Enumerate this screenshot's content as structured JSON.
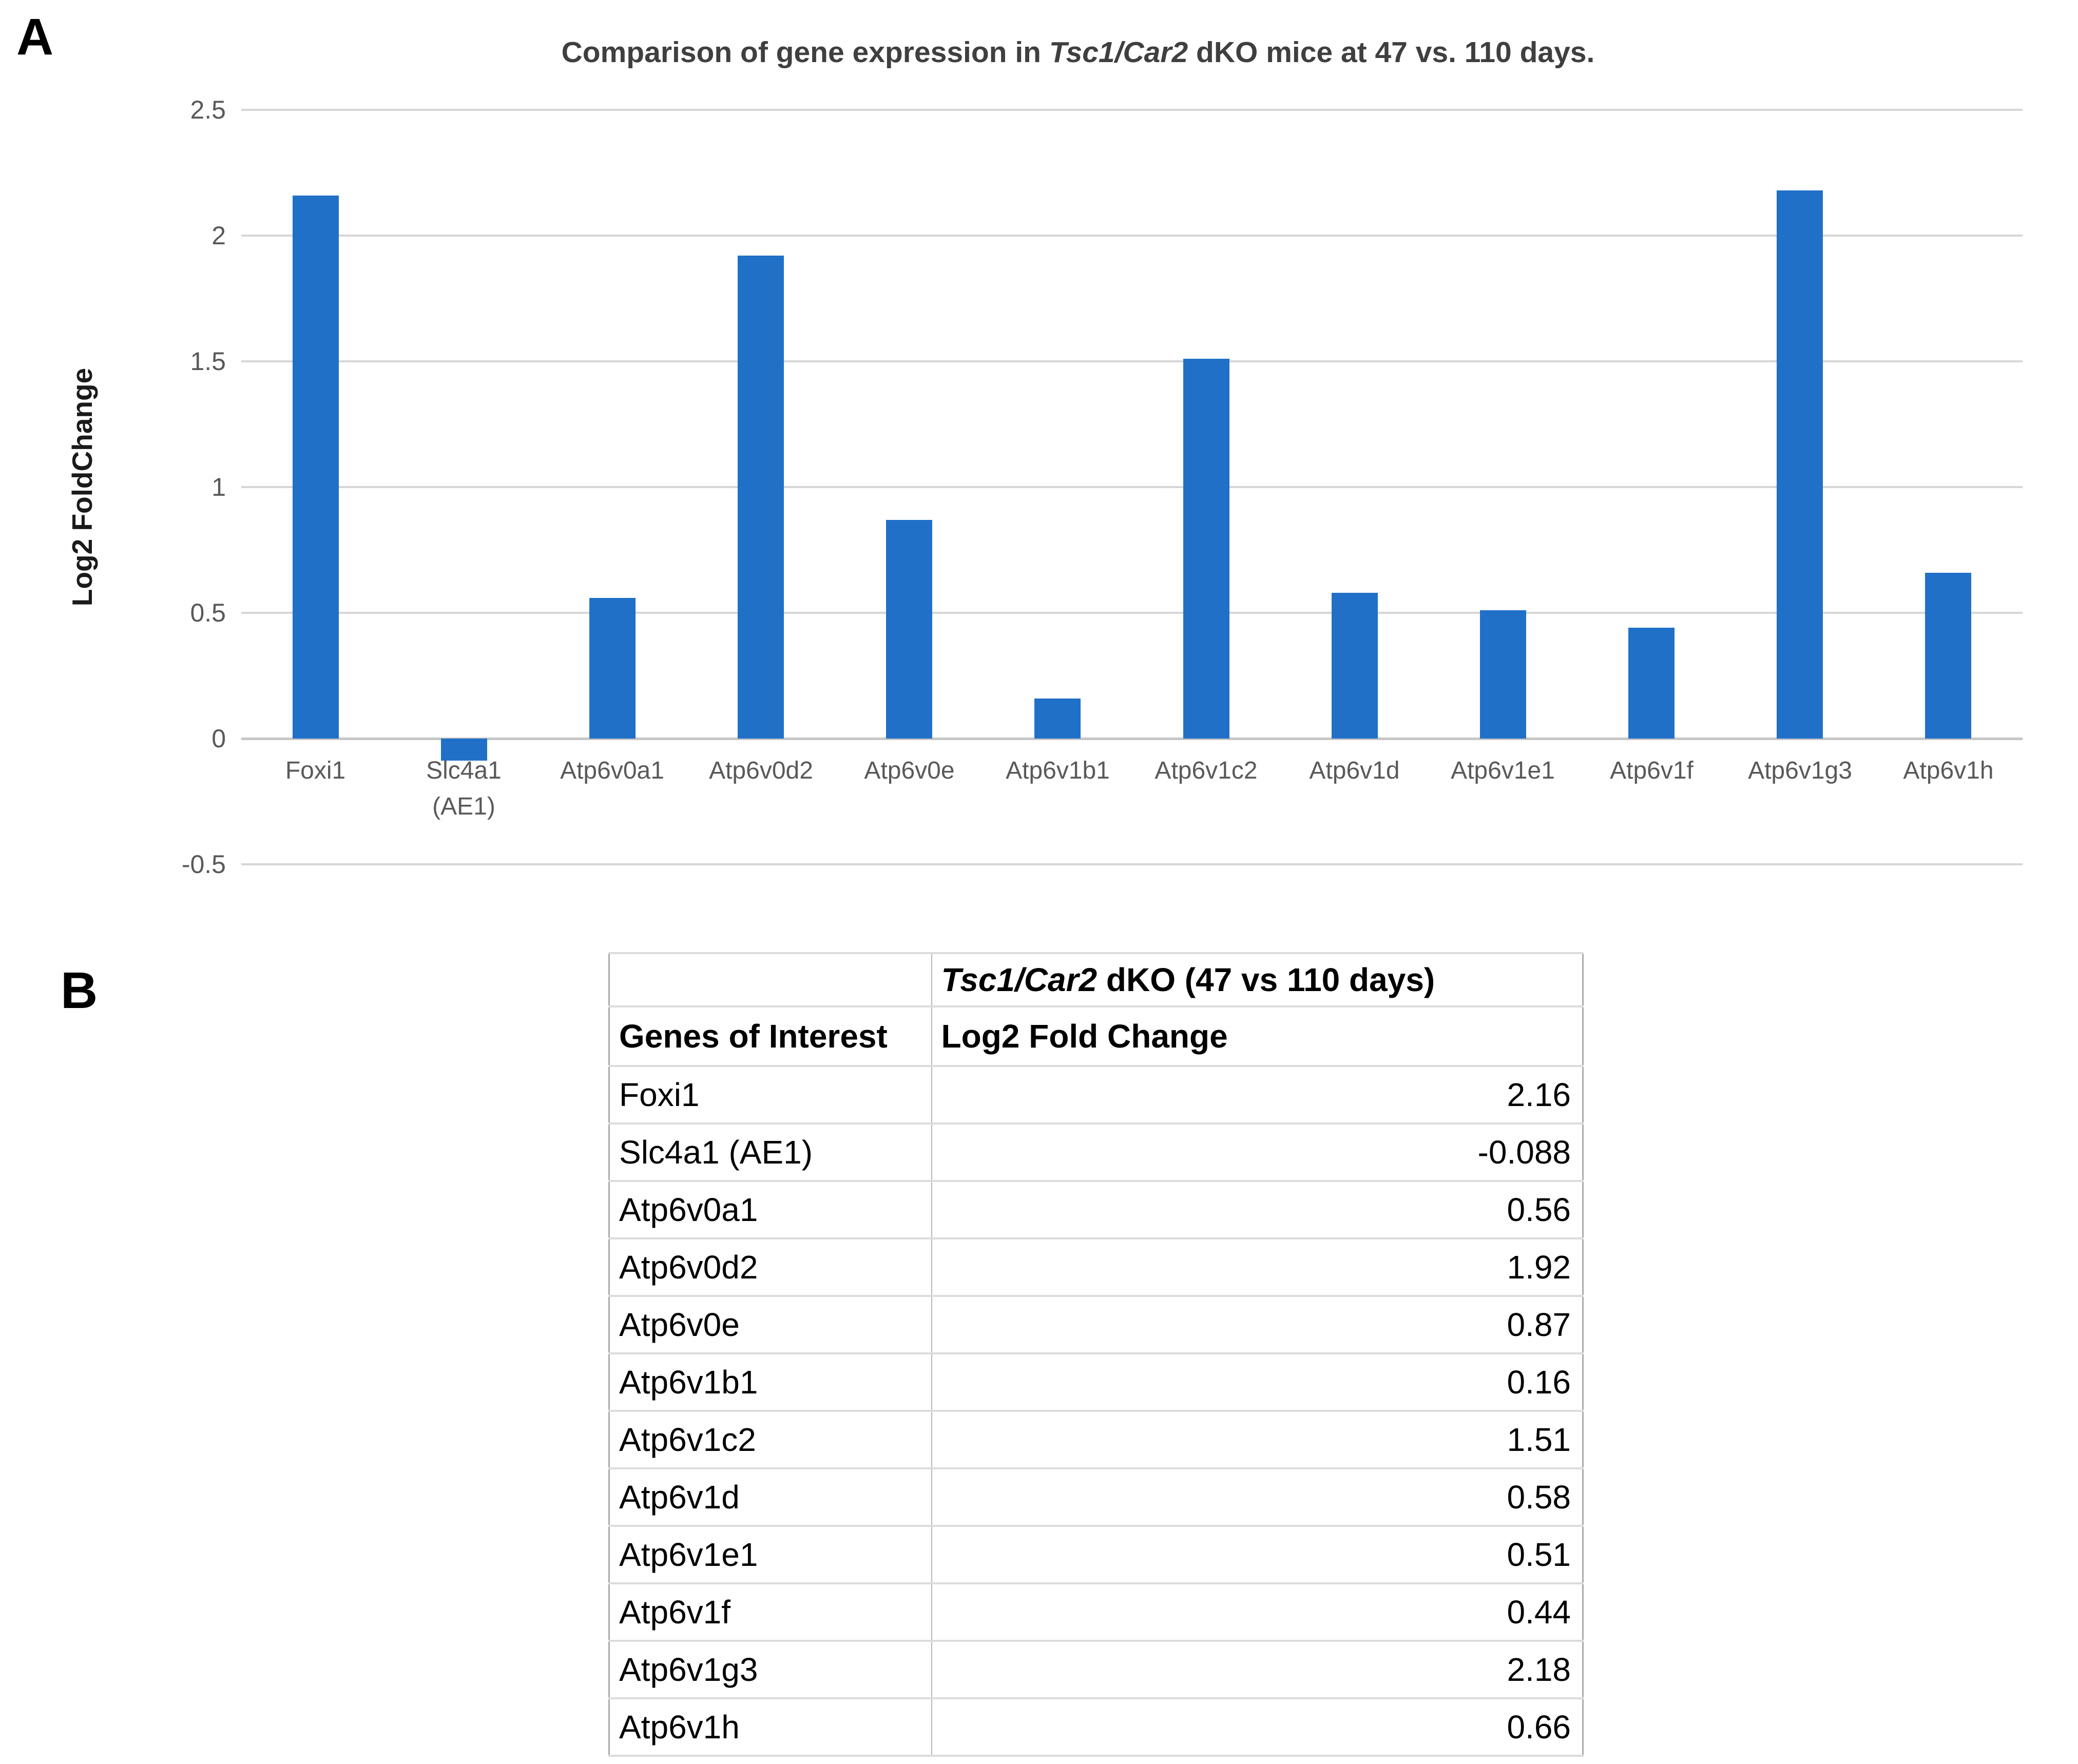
{
  "panels": {
    "a_label": "A",
    "b_label": "B"
  },
  "chart_data": {
    "type": "bar",
    "title": "Comparison of gene expression in Tsc1/Car2 dKO mice at 47 vs. 110 days.",
    "title_parts": {
      "prefix": "Comparison of gene expression in ",
      "italic": "Tsc1/Car2",
      "suffix": " dKO mice at 47 vs. 110 days."
    },
    "ylabel": "Log2 FoldChange",
    "xlabel": "",
    "categories": [
      "Foxi1",
      "Slc4a1 (AE1)",
      "Atp6v0a1",
      "Atp6v0d2",
      "Atp6v0e",
      "Atp6v1b1",
      "Atp6v1c2",
      "Atp6v1d",
      "Atp6v1e1",
      "Atp6v1f",
      "Atp6v1g3",
      "Atp6v1h"
    ],
    "category_display": [
      "Foxi1",
      "Slc4a1\n(AE1)",
      "Atp6v0a1",
      "Atp6v0d2",
      "Atp6v0e",
      "Atp6v1b1",
      "Atp6v1c2",
      "Atp6v1d",
      "Atp6v1e1",
      "Atp6v1f",
      "Atp6v1g3",
      "Atp6v1h"
    ],
    "values": [
      2.16,
      -0.088,
      0.56,
      1.92,
      0.87,
      0.16,
      1.51,
      0.58,
      0.51,
      0.44,
      2.18,
      0.66
    ],
    "ylim": [
      -0.5,
      2.5
    ],
    "yticks": [
      2.5,
      2,
      1.5,
      1,
      0.5,
      0,
      -0.5
    ],
    "ytick_labels": [
      "2.5",
      "2",
      "1.5",
      "1",
      "0.5",
      "0",
      "-0.5"
    ],
    "grid": true,
    "legend": false,
    "bar_color": "#2070C8",
    "gridline_color": "#D6D6D6",
    "axis_line_color": "#C6C6C6",
    "tick_label_color": "#595959",
    "title_color": "#3F3F3F"
  },
  "table": {
    "header_title": "Tsc1/Car2 dKO (47 vs 110 days)",
    "header_title_parts": {
      "italic": "Tsc1/Car2",
      "rest": " dKO (47 vs 110 days)"
    },
    "columns": [
      "Genes of Interest",
      "Log2 Fold Change"
    ],
    "rows": [
      {
        "gene": "Foxi1",
        "value": "2.16"
      },
      {
        "gene": "Slc4a1 (AE1)",
        "value": "-0.088"
      },
      {
        "gene": "Atp6v0a1",
        "value": "0.56"
      },
      {
        "gene": "Atp6v0d2",
        "value": "1.92"
      },
      {
        "gene": "Atp6v0e",
        "value": "0.87"
      },
      {
        "gene": "Atp6v1b1",
        "value": "0.16"
      },
      {
        "gene": "Atp6v1c2",
        "value": "1.51"
      },
      {
        "gene": "Atp6v1d",
        "value": "0.58"
      },
      {
        "gene": "Atp6v1e1",
        "value": "0.51"
      },
      {
        "gene": "Atp6v1f",
        "value": "0.44"
      },
      {
        "gene": "Atp6v1g3",
        "value": "2.18"
      },
      {
        "gene": "Atp6v1h",
        "value": "0.66"
      }
    ]
  }
}
